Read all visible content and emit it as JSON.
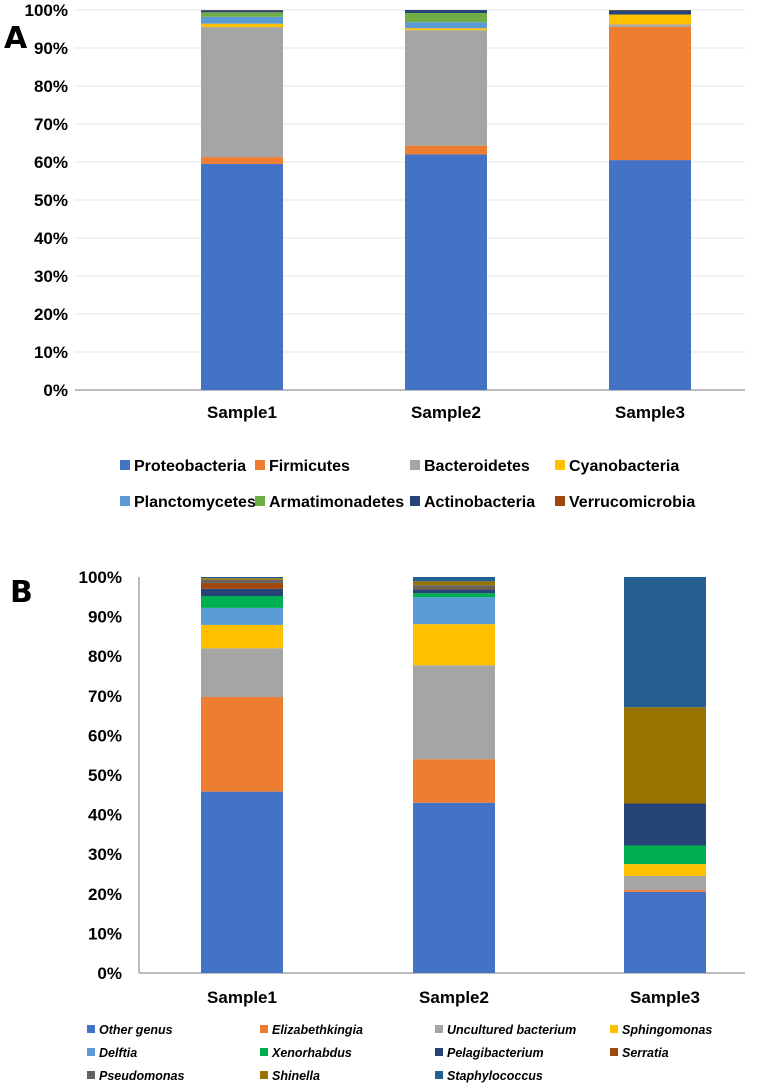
{
  "chart_data": [
    {
      "type": "bar",
      "stacked": true,
      "panel_label": "A",
      "title": "",
      "xlabel": "",
      "ylabel": "",
      "ylim": [
        0,
        100
      ],
      "y_ticks": [
        "0%",
        "10%",
        "20%",
        "30%",
        "40%",
        "50%",
        "60%",
        "70%",
        "80%",
        "90%",
        "100%"
      ],
      "grid": true,
      "legend_position": "bottom",
      "categories": [
        "Sample1",
        "Sample2",
        "Sample3"
      ],
      "series": [
        {
          "name": "Proteobacteria",
          "color": "#4472C4",
          "values": [
            59.5,
            62.0,
            60.5
          ]
        },
        {
          "name": "Firmicutes",
          "color": "#ED7D31",
          "values": [
            1.8,
            2.3,
            35.1
          ]
        },
        {
          "name": "Bacteroidetes",
          "color": "#A5A5A5",
          "values": [
            34.2,
            30.4,
            0.6
          ]
        },
        {
          "name": "Cyanobacteria",
          "color": "#FFC000",
          "values": [
            0.9,
            0.5,
            2.6
          ]
        },
        {
          "name": "Planctomycetes",
          "color": "#5B9BD5",
          "values": [
            1.8,
            1.6,
            0.0
          ]
        },
        {
          "name": "Armatimonadetes",
          "color": "#70AD47",
          "values": [
            1.2,
            2.4,
            0.0
          ]
        },
        {
          "name": "Actinobacteria",
          "color": "#264478",
          "values": [
            0.5,
            0.8,
            1.1
          ]
        },
        {
          "name": "Verrucomicrobia",
          "color": "#9E480E",
          "values": [
            0.1,
            0.0,
            0.1
          ]
        }
      ]
    },
    {
      "type": "bar",
      "stacked": true,
      "panel_label": "B",
      "title": "",
      "xlabel": "",
      "ylabel": "",
      "ylim": [
        0,
        100
      ],
      "y_ticks": [
        "0%",
        "10%",
        "20%",
        "30%",
        "40%",
        "50%",
        "60%",
        "70%",
        "80%",
        "90%",
        "100%"
      ],
      "grid": false,
      "legend_position": "bottom",
      "categories": [
        "Sample1",
        "Sample2",
        "Sample3"
      ],
      "series": [
        {
          "name": "Other genus",
          "color": "#4472C4",
          "values": [
            45.8,
            43.0,
            20.5
          ]
        },
        {
          "name": "Elizabethkingia",
          "color": "#ED7D31",
          "values": [
            23.9,
            11.0,
            0.5
          ]
        },
        {
          "name": "Uncultured bacterium",
          "color": "#A5A5A5",
          "values": [
            12.3,
            23.7,
            3.5
          ]
        },
        {
          "name": "Sphingomonas",
          "color": "#FFC000",
          "values": [
            5.9,
            10.4,
            3.0
          ]
        },
        {
          "name": "Delftia",
          "color": "#5B9BD5",
          "values": [
            4.3,
            6.8,
            0.0
          ]
        },
        {
          "name": "Xenorhabdus",
          "color": "#00B050",
          "values": [
            3.0,
            1.0,
            4.7
          ]
        },
        {
          "name": "Pelagibacterium",
          "color": "#264478",
          "values": [
            1.8,
            1.0,
            10.6
          ]
        },
        {
          "name": "Serratia",
          "color": "#9E480E",
          "values": [
            1.5,
            0.2,
            0.0
          ]
        },
        {
          "name": "Pseudomonas",
          "color": "#636363",
          "values": [
            0.8,
            0.8,
            0.0
          ]
        },
        {
          "name": "Shinella",
          "color": "#997300",
          "values": [
            0.4,
            1.0,
            24.3
          ]
        },
        {
          "name": "Staphylococcus",
          "color": "#255E91",
          "values": [
            0.3,
            1.1,
            32.9
          ]
        }
      ]
    }
  ]
}
